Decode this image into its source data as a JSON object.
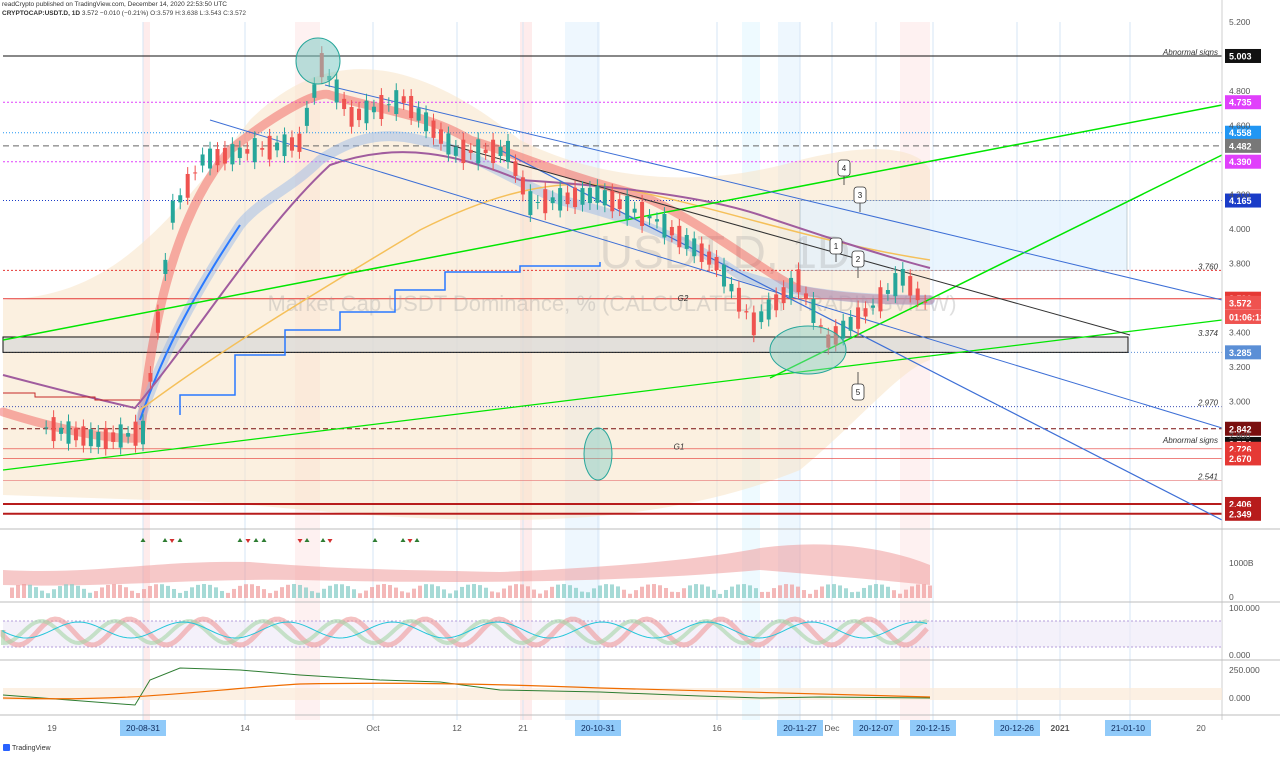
{
  "header": {
    "publisher_line": "readCrypto published on TradingView.com, December 14, 2020 22:53:50 UTC",
    "symbol": "CRYPTOCAP:USDT.D, 1D",
    "last": "3.572",
    "change": "−0.010 (−0.21%)",
    "ohlc": "O:3.579 H:3.638 L:3.543 C:3.572"
  },
  "footer": {
    "brand": "TradingView"
  },
  "colors": {
    "up": "#26a69a",
    "down": "#ef5350",
    "green_line": "#00e600",
    "blue_line": "#2962ff",
    "purple": "#a05c9e",
    "orange": "#f5c05a",
    "red_level": "#e53935",
    "magenta": "#e040fb"
  },
  "chart_data": {
    "type": "line",
    "symbol": "USDT.D",
    "watermark_main": "USDT.D, 1D",
    "watermark_sub": "Market Cap USDT Dominance, % (CALCULATED BY TRADINGVIEW)",
    "y_axis_ticks": [
      5.2,
      4.8,
      4.6,
      4.2,
      4.0,
      3.8,
      3.4,
      3.2,
      3.0,
      2.8
    ],
    "y_axis_tick_labels": [
      "5.200",
      "4.800",
      "4.600",
      "4.200",
      "4.000",
      "3.800",
      "3.400",
      "3.200",
      "3.000",
      "2.800"
    ],
    "ylim": [
      2.3,
      5.25
    ],
    "x_axis_labels": [
      "19",
      "20-08-31",
      "14",
      "Oct",
      "12",
      "21",
      "20-10-31",
      "16",
      "20-11-27",
      "Dec",
      "20-12-07",
      "20-12-15",
      "20-12-26",
      "2021",
      "21-01-10",
      "20"
    ],
    "price_path": [
      {
        "date": "2020-08-18",
        "value": 2.85
      },
      {
        "date": "2020-08-25",
        "value": 2.78
      },
      {
        "date": "2020-08-31",
        "value": 2.82
      },
      {
        "date": "2020-09-04",
        "value": 4.1
      },
      {
        "date": "2020-09-08",
        "value": 4.4
      },
      {
        "date": "2020-09-14",
        "value": 4.45
      },
      {
        "date": "2020-09-21",
        "value": 4.5
      },
      {
        "date": "2020-09-24",
        "value": 4.95
      },
      {
        "date": "2020-09-28",
        "value": 4.65
      },
      {
        "date": "2020-10-05",
        "value": 4.75
      },
      {
        "date": "2020-10-12",
        "value": 4.45
      },
      {
        "date": "2020-10-19",
        "value": 4.45
      },
      {
        "date": "2020-10-22",
        "value": 4.15
      },
      {
        "date": "2020-10-31",
        "value": 4.2
      },
      {
        "date": "2020-11-08",
        "value": 4.05
      },
      {
        "date": "2020-11-16",
        "value": 3.8
      },
      {
        "date": "2020-11-21",
        "value": 3.45
      },
      {
        "date": "2020-11-27",
        "value": 3.7
      },
      {
        "date": "2020-12-01",
        "value": 3.35
      },
      {
        "date": "2020-12-07",
        "value": 3.55
      },
      {
        "date": "2020-12-11",
        "value": 3.72
      },
      {
        "date": "2020-12-14",
        "value": 3.572
      }
    ],
    "price_labels": [
      {
        "value": 5.003,
        "text": "5.003",
        "bg": "#111111"
      },
      {
        "value": 4.735,
        "text": "4.735",
        "bg": "#e040fb"
      },
      {
        "value": 4.558,
        "text": "4.558",
        "bg": "#2196f3"
      },
      {
        "value": 4.482,
        "text": "4.482",
        "bg": "#787878"
      },
      {
        "value": 4.39,
        "text": "4.390",
        "bg": "#e040fb"
      },
      {
        "value": 4.165,
        "text": "4.165",
        "bg": "#1a3cc8"
      },
      {
        "value": 3.596,
        "text": "3.596",
        "bg": "#e53935"
      },
      {
        "value": 3.572,
        "text": "3.572",
        "bg": "#ef5350"
      },
      {
        "value": 3.49,
        "text": "01:06:12",
        "bg": "#ef5350"
      },
      {
        "value": 3.285,
        "text": "3.285",
        "bg": "#5b8fd6"
      },
      {
        "value": 2.842,
        "text": "2.842",
        "bg": "#7a0f0f"
      },
      {
        "value": 2.754,
        "text": "2.754",
        "bg": "#111111"
      },
      {
        "value": 2.726,
        "text": "2.726",
        "bg": "#e53935"
      },
      {
        "value": 2.67,
        "text": "2.670",
        "bg": "#e53935"
      },
      {
        "value": 2.406,
        "text": "2.406",
        "bg": "#b71c1c"
      },
      {
        "value": 2.349,
        "text": "2.349",
        "bg": "#b71c1c"
      }
    ],
    "annotations": [
      {
        "text": "Abnormal signs",
        "value": 5.003
      },
      {
        "text": "3.760",
        "value": 3.76
      },
      {
        "text": "3.374",
        "value": 3.374
      },
      {
        "text": "2.970",
        "value": 2.97
      },
      {
        "text": "Abnormal signs",
        "value": 2.754
      },
      {
        "text": "2.541",
        "value": 2.541
      },
      {
        "text": "G2",
        "value": 3.6
      },
      {
        "text": "G1",
        "value": 2.74
      }
    ],
    "callouts": [
      "1",
      "2",
      "3",
      "4",
      "5"
    ],
    "volume_panel": {
      "tick_labels": [
        "1000B",
        "0"
      ]
    },
    "oscillator_panel": {
      "tick_labels": [
        "100.000",
        "0.000"
      ]
    },
    "obv_panel": {
      "tick_labels": [
        "250.000",
        "0.000"
      ]
    }
  }
}
